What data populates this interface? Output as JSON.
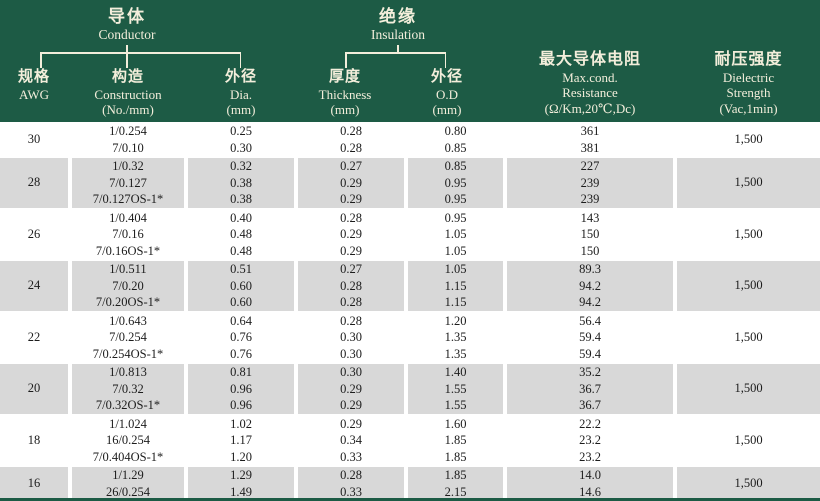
{
  "header": {
    "conductor": {
      "zh": "导体",
      "en": "Conductor"
    },
    "insulation": {
      "zh": "绝缘",
      "en": "Insulation"
    },
    "columns": {
      "awg": {
        "zh": "规格",
        "en": "AWG"
      },
      "construction": {
        "zh": "构造",
        "en": "Construction",
        "unit": "(No./mm)"
      },
      "dia": {
        "zh": "外径",
        "en": "Dia.",
        "unit": "(mm)"
      },
      "thickness": {
        "zh": "厚度",
        "en": "Thickness",
        "unit": "(mm)"
      },
      "od": {
        "zh": "外径",
        "en": "O.D",
        "unit": "(mm)"
      },
      "resistance": {
        "zh": "最大导体电阻",
        "en": "Max.cond.",
        "en2": "Resistance",
        "unit": "(Ω/Km,20℃,Dc)"
      },
      "dielectric": {
        "zh": "耐压强度",
        "en": "Dielectric",
        "en2": "Strength",
        "unit": "(Vac,1min)"
      }
    }
  },
  "rows": [
    {
      "awg": "30",
      "construction": [
        "1/0.254",
        "7/0.10"
      ],
      "dia": [
        "0.25",
        "0.30"
      ],
      "thickness": [
        "0.28",
        "0.28"
      ],
      "od": [
        "0.80",
        "0.85"
      ],
      "resistance": [
        "361",
        "381"
      ],
      "dielectric": "1,500"
    },
    {
      "awg": "28",
      "construction": [
        "1/0.32",
        "7/0.127",
        "7/0.127OS-1*"
      ],
      "dia": [
        "0.32",
        "0.38",
        "0.38"
      ],
      "thickness": [
        "0.27",
        "0.29",
        "0.29"
      ],
      "od": [
        "0.85",
        "0.95",
        "0.95"
      ],
      "resistance": [
        "227",
        "239",
        "239"
      ],
      "dielectric": "1,500"
    },
    {
      "awg": "26",
      "construction": [
        "1/0.404",
        "7/0.16",
        "7/0.16OS-1*"
      ],
      "dia": [
        "0.40",
        "0.48",
        "0.48"
      ],
      "thickness": [
        "0.28",
        "0.29",
        "0.29"
      ],
      "od": [
        "0.95",
        "1.05",
        "1.05"
      ],
      "resistance": [
        "143",
        "150",
        "150"
      ],
      "dielectric": "1,500"
    },
    {
      "awg": "24",
      "construction": [
        "1/0.511",
        "7/0.20",
        "7/0.20OS-1*"
      ],
      "dia": [
        "0.51",
        "0.60",
        "0.60"
      ],
      "thickness": [
        "0.27",
        "0.28",
        "0.28"
      ],
      "od": [
        "1.05",
        "1.15",
        "1.15"
      ],
      "resistance": [
        "89.3",
        "94.2",
        "94.2"
      ],
      "dielectric": "1,500"
    },
    {
      "awg": "22",
      "construction": [
        "1/0.643",
        "7/0.254",
        "7/0.254OS-1*"
      ],
      "dia": [
        "0.64",
        "0.76",
        "0.76"
      ],
      "thickness": [
        "0.28",
        "0.30",
        "0.30"
      ],
      "od": [
        "1.20",
        "1.35",
        "1.35"
      ],
      "resistance": [
        "56.4",
        "59.4",
        "59.4"
      ],
      "dielectric": "1,500"
    },
    {
      "awg": "20",
      "construction": [
        "1/0.813",
        "7/0.32",
        "7/0.32OS-1*"
      ],
      "dia": [
        "0.81",
        "0.96",
        "0.96"
      ],
      "thickness": [
        "0.30",
        "0.29",
        "0.29"
      ],
      "od": [
        "1.40",
        "1.55",
        "1.55"
      ],
      "resistance": [
        "35.2",
        "36.7",
        "36.7"
      ],
      "dielectric": "1,500"
    },
    {
      "awg": "18",
      "construction": [
        "1/1.024",
        "16/0.254",
        "7/0.404OS-1*"
      ],
      "dia": [
        "1.02",
        "1.17",
        "1.20"
      ],
      "thickness": [
        "0.29",
        "0.34",
        "0.33"
      ],
      "od": [
        "1.60",
        "1.85",
        "1.85"
      ],
      "resistance": [
        "22.2",
        "23.2",
        "23.2"
      ],
      "dielectric": "1,500"
    },
    {
      "awg": "16",
      "construction": [
        "1/1.29",
        "26/0.254"
      ],
      "dia": [
        "1.29",
        "1.49"
      ],
      "thickness": [
        "0.28",
        "0.33"
      ],
      "od": [
        "1.85",
        "2.15"
      ],
      "resistance": [
        "14.0",
        "14.6"
      ],
      "dielectric": "1,500"
    }
  ],
  "colors": {
    "header_bg": "#1d5b45",
    "header_text": "#f3eedb",
    "row_alt_bg": "#d8d8d8",
    "body_text": "#1c1c1c"
  }
}
